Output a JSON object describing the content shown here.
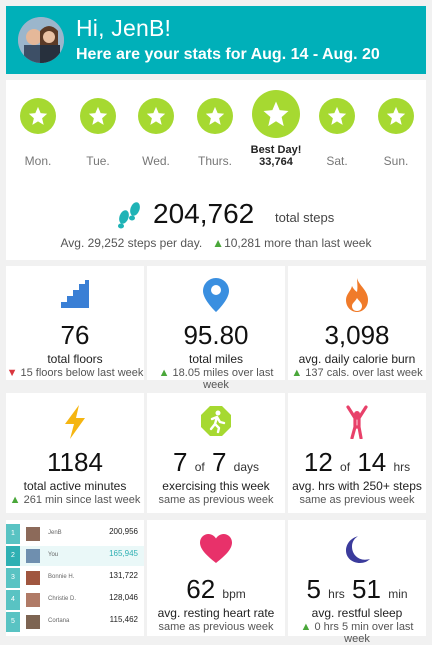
{
  "header": {
    "greeting": "Hi, JenB!",
    "subtitle": "Here are your stats for Aug. 14 - Aug. 20"
  },
  "days": [
    {
      "label": "Mon."
    },
    {
      "label": "Tue."
    },
    {
      "label": "Wed."
    },
    {
      "label": "Thurs."
    },
    {
      "label": "Best Day!",
      "value": "33,764"
    },
    {
      "label": "Sat."
    },
    {
      "label": "Sun."
    }
  ],
  "steps": {
    "total": "204,762",
    "label": "total steps",
    "avg": "Avg. 29,252 steps per day.",
    "change": "10,281 more than last week"
  },
  "tiles": {
    "floors": {
      "value": "76",
      "label": "total floors",
      "change": "15 floors below last week"
    },
    "miles": {
      "value": "95.80",
      "label": "total miles",
      "change": "18.05 miles over last week"
    },
    "calories": {
      "value": "3,098",
      "label": "avg. daily calorie burn",
      "change": "137 cals. over last week"
    },
    "active": {
      "value": "1184",
      "label": "total active minutes",
      "change": "261 min since last week"
    },
    "exercise": {
      "value": "7",
      "of": "of",
      "total": "7",
      "unit": "days",
      "label": "exercising this week",
      "change": "same as previous week"
    },
    "hourly": {
      "value": "12",
      "of": "of",
      "total": "14",
      "unit": "hrs",
      "label": "avg. hrs with 250+ steps",
      "change": "same as previous week"
    },
    "heart": {
      "value": "62",
      "unit": "bpm",
      "label": "avg. resting heart rate",
      "change": "same as previous week"
    },
    "sleep": {
      "hours": "5",
      "hrs_unit": "hrs",
      "minutes": "51",
      "min_unit": "min",
      "label": "avg. restful sleep",
      "change": "0 hrs 5 min over last week"
    }
  },
  "leaderboard": [
    {
      "rank": "1",
      "name": "JenB",
      "steps": "200,956"
    },
    {
      "rank": "2",
      "name": "You",
      "steps": "165,945"
    },
    {
      "rank": "3",
      "name": "Bonnie H.",
      "steps": "131,722"
    },
    {
      "rank": "4",
      "name": "Christie D.",
      "steps": "128,046"
    },
    {
      "rank": "5",
      "name": "Cortana",
      "steps": "115,462"
    }
  ],
  "colors": {
    "header_bg": "#00b0b9",
    "star_green": "#a6d931",
    "up": "#4aa73a",
    "down": "#d9363e",
    "floors_icon": "#3a7fd5",
    "miles_icon": "#3a8fe0",
    "calorie_icon": "#f07b2a",
    "active_icon": "#f5b511",
    "exercise_icon": "#a6d931",
    "hourly_icon": "#e8416a",
    "heart_icon": "#e8316a",
    "sleep_icon": "#3b3b9c"
  },
  "icons": [
    "star-icon",
    "footsteps-icon",
    "stairs-icon",
    "map-pin-icon",
    "flame-icon",
    "lightning-icon",
    "running-icon",
    "person-stretch-icon",
    "heart-icon",
    "moon-icon"
  ]
}
